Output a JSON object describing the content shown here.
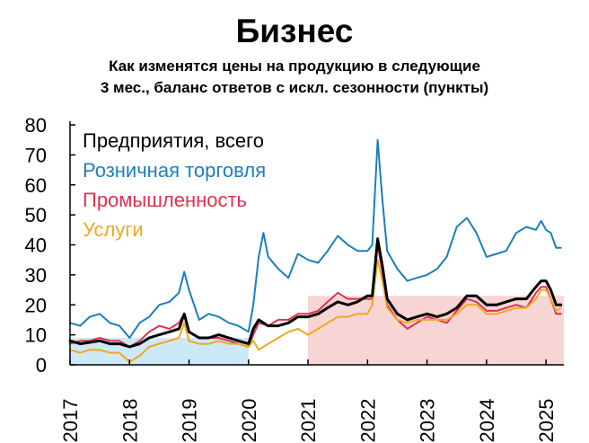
{
  "chart_data": {
    "type": "line",
    "title": "Бизнес",
    "subtitle_line1": "Как изменятся цены на продукцию в следующие",
    "subtitle_line2": "3 мес., баланс ответов с искл. сезонности (пункты)",
    "xlabel": "",
    "ylabel": "",
    "ylim": [
      0,
      80
    ],
    "xlim": [
      2017.0,
      2025.3
    ],
    "yticks": [
      "0",
      "10",
      "20",
      "30",
      "40",
      "50",
      "60",
      "70",
      "80"
    ],
    "xticks": [
      "2017",
      "2018",
      "2019",
      "2020",
      "2021",
      "2022",
      "2023",
      "2024",
      "2025"
    ],
    "legend": [
      "Предприятия, всего",
      "Розничная торговля",
      "Промышленность",
      "Услуги"
    ],
    "shaded_regions": [
      {
        "x_start": 2017.0,
        "x_end": 2020.0,
        "y_top": 9,
        "color": "#cde9f8"
      },
      {
        "x_start": 2021.0,
        "x_end": 2025.3,
        "y_top": 23,
        "color": "#f8d5d5"
      }
    ],
    "series": [
      {
        "name": "Предприятия, всего",
        "color": "#000000",
        "points": [
          [
            2017.0,
            8
          ],
          [
            2017.17,
            7
          ],
          [
            2017.33,
            7.5
          ],
          [
            2017.5,
            8
          ],
          [
            2017.67,
            7
          ],
          [
            2017.83,
            7
          ],
          [
            2018.0,
            6
          ],
          [
            2018.17,
            7
          ],
          [
            2018.33,
            9
          ],
          [
            2018.5,
            10
          ],
          [
            2018.67,
            11
          ],
          [
            2018.83,
            12
          ],
          [
            2018.92,
            17
          ],
          [
            2019.0,
            11
          ],
          [
            2019.17,
            9
          ],
          [
            2019.33,
            9
          ],
          [
            2019.5,
            10
          ],
          [
            2019.67,
            9
          ],
          [
            2019.83,
            8
          ],
          [
            2020.0,
            7
          ],
          [
            2020.08,
            12
          ],
          [
            2020.17,
            15
          ],
          [
            2020.33,
            13
          ],
          [
            2020.5,
            13
          ],
          [
            2020.67,
            14
          ],
          [
            2020.83,
            16
          ],
          [
            2021.0,
            16
          ],
          [
            2021.17,
            17
          ],
          [
            2021.33,
            19
          ],
          [
            2021.5,
            21
          ],
          [
            2021.67,
            20
          ],
          [
            2021.83,
            21
          ],
          [
            2022.0,
            23
          ],
          [
            2022.08,
            23
          ],
          [
            2022.17,
            42
          ],
          [
            2022.25,
            33
          ],
          [
            2022.33,
            22
          ],
          [
            2022.5,
            17
          ],
          [
            2022.67,
            15
          ],
          [
            2022.83,
            16
          ],
          [
            2023.0,
            17
          ],
          [
            2023.17,
            16
          ],
          [
            2023.33,
            17
          ],
          [
            2023.5,
            19
          ],
          [
            2023.67,
            23
          ],
          [
            2023.83,
            23
          ],
          [
            2024.0,
            20
          ],
          [
            2024.17,
            20
          ],
          [
            2024.33,
            21
          ],
          [
            2024.5,
            22
          ],
          [
            2024.67,
            22
          ],
          [
            2024.83,
            26
          ],
          [
            2024.92,
            28
          ],
          [
            2025.0,
            28
          ],
          [
            2025.08,
            25
          ],
          [
            2025.17,
            20
          ],
          [
            2025.25,
            20
          ]
        ]
      },
      {
        "name": "Розничная торговля",
        "color": "#1a7fbf",
        "points": [
          [
            2017.0,
            14
          ],
          [
            2017.17,
            13
          ],
          [
            2017.33,
            16
          ],
          [
            2017.5,
            17
          ],
          [
            2017.67,
            14
          ],
          [
            2017.83,
            13
          ],
          [
            2018.0,
            9
          ],
          [
            2018.17,
            14
          ],
          [
            2018.33,
            16
          ],
          [
            2018.5,
            20
          ],
          [
            2018.67,
            21
          ],
          [
            2018.83,
            24
          ],
          [
            2018.92,
            31
          ],
          [
            2019.0,
            25
          ],
          [
            2019.17,
            15
          ],
          [
            2019.33,
            17
          ],
          [
            2019.5,
            16
          ],
          [
            2019.67,
            14
          ],
          [
            2019.83,
            13
          ],
          [
            2020.0,
            11
          ],
          [
            2020.08,
            20
          ],
          [
            2020.17,
            36
          ],
          [
            2020.25,
            44
          ],
          [
            2020.33,
            36
          ],
          [
            2020.5,
            32
          ],
          [
            2020.67,
            29
          ],
          [
            2020.83,
            37
          ],
          [
            2021.0,
            35
          ],
          [
            2021.17,
            34
          ],
          [
            2021.33,
            38
          ],
          [
            2021.5,
            43
          ],
          [
            2021.67,
            40
          ],
          [
            2021.83,
            38
          ],
          [
            2022.0,
            38
          ],
          [
            2022.08,
            40
          ],
          [
            2022.17,
            75
          ],
          [
            2022.25,
            55
          ],
          [
            2022.33,
            38
          ],
          [
            2022.5,
            32
          ],
          [
            2022.67,
            28
          ],
          [
            2022.83,
            29
          ],
          [
            2023.0,
            30
          ],
          [
            2023.17,
            32
          ],
          [
            2023.33,
            36
          ],
          [
            2023.5,
            46
          ],
          [
            2023.67,
            49
          ],
          [
            2023.83,
            44
          ],
          [
            2024.0,
            36
          ],
          [
            2024.17,
            37
          ],
          [
            2024.33,
            38
          ],
          [
            2024.5,
            44
          ],
          [
            2024.67,
            46
          ],
          [
            2024.83,
            45
          ],
          [
            2024.92,
            48
          ],
          [
            2025.0,
            45
          ],
          [
            2025.08,
            44
          ],
          [
            2025.17,
            39
          ],
          [
            2025.25,
            39
          ]
        ]
      },
      {
        "name": "Промышленность",
        "color": "#e0304e",
        "points": [
          [
            2017.0,
            7
          ],
          [
            2017.17,
            8
          ],
          [
            2017.33,
            8
          ],
          [
            2017.5,
            9
          ],
          [
            2017.67,
            8
          ],
          [
            2017.83,
            8
          ],
          [
            2018.0,
            6
          ],
          [
            2018.17,
            8
          ],
          [
            2018.33,
            11
          ],
          [
            2018.5,
            13
          ],
          [
            2018.67,
            12
          ],
          [
            2018.83,
            14
          ],
          [
            2018.92,
            17
          ],
          [
            2019.0,
            11
          ],
          [
            2019.17,
            9
          ],
          [
            2019.33,
            9
          ],
          [
            2019.5,
            9
          ],
          [
            2019.67,
            8
          ],
          [
            2019.83,
            7
          ],
          [
            2020.0,
            6
          ],
          [
            2020.08,
            10
          ],
          [
            2020.17,
            14
          ],
          [
            2020.33,
            13
          ],
          [
            2020.5,
            15
          ],
          [
            2020.67,
            15
          ],
          [
            2020.83,
            17
          ],
          [
            2021.0,
            17
          ],
          [
            2021.17,
            18
          ],
          [
            2021.33,
            21
          ],
          [
            2021.5,
            24
          ],
          [
            2021.67,
            22
          ],
          [
            2021.83,
            22
          ],
          [
            2022.0,
            22
          ],
          [
            2022.08,
            22
          ],
          [
            2022.17,
            40
          ],
          [
            2022.25,
            31
          ],
          [
            2022.33,
            20
          ],
          [
            2022.5,
            15
          ],
          [
            2022.67,
            12
          ],
          [
            2022.83,
            14
          ],
          [
            2023.0,
            16
          ],
          [
            2023.17,
            15
          ],
          [
            2023.33,
            14
          ],
          [
            2023.5,
            18
          ],
          [
            2023.67,
            22
          ],
          [
            2023.83,
            21
          ],
          [
            2024.0,
            18
          ],
          [
            2024.17,
            18
          ],
          [
            2024.33,
            19
          ],
          [
            2024.5,
            20
          ],
          [
            2024.67,
            19
          ],
          [
            2024.83,
            24
          ],
          [
            2024.92,
            26
          ],
          [
            2025.0,
            26
          ],
          [
            2025.08,
            22
          ],
          [
            2025.17,
            17
          ],
          [
            2025.25,
            17
          ]
        ]
      },
      {
        "name": "Услуги",
        "color": "#f0a820",
        "points": [
          [
            2017.0,
            5
          ],
          [
            2017.17,
            4
          ],
          [
            2017.33,
            5
          ],
          [
            2017.5,
            5
          ],
          [
            2017.67,
            4
          ],
          [
            2017.83,
            4
          ],
          [
            2018.0,
            1
          ],
          [
            2018.17,
            3
          ],
          [
            2018.33,
            6
          ],
          [
            2018.5,
            7
          ],
          [
            2018.67,
            8
          ],
          [
            2018.83,
            9
          ],
          [
            2018.92,
            14
          ],
          [
            2019.0,
            8
          ],
          [
            2019.17,
            7
          ],
          [
            2019.33,
            7
          ],
          [
            2019.5,
            8
          ],
          [
            2019.67,
            7
          ],
          [
            2019.83,
            7
          ],
          [
            2020.0,
            6
          ],
          [
            2020.08,
            8
          ],
          [
            2020.17,
            5
          ],
          [
            2020.33,
            7
          ],
          [
            2020.5,
            9
          ],
          [
            2020.67,
            11
          ],
          [
            2020.83,
            12
          ],
          [
            2021.0,
            10
          ],
          [
            2021.17,
            12
          ],
          [
            2021.33,
            14
          ],
          [
            2021.5,
            16
          ],
          [
            2021.67,
            16
          ],
          [
            2021.83,
            17
          ],
          [
            2022.0,
            17
          ],
          [
            2022.08,
            20
          ],
          [
            2022.17,
            35
          ],
          [
            2022.25,
            28
          ],
          [
            2022.33,
            19
          ],
          [
            2022.5,
            15
          ],
          [
            2022.67,
            14
          ],
          [
            2022.83,
            15
          ],
          [
            2023.0,
            15
          ],
          [
            2023.17,
            15
          ],
          [
            2023.33,
            15
          ],
          [
            2023.5,
            17
          ],
          [
            2023.67,
            20
          ],
          [
            2023.83,
            20
          ],
          [
            2024.0,
            17
          ],
          [
            2024.17,
            17
          ],
          [
            2024.33,
            18
          ],
          [
            2024.5,
            19
          ],
          [
            2024.67,
            19
          ],
          [
            2024.83,
            22
          ],
          [
            2024.92,
            25
          ],
          [
            2025.0,
            25
          ],
          [
            2025.08,
            22
          ],
          [
            2025.17,
            18
          ],
          [
            2025.25,
            19
          ]
        ]
      }
    ]
  }
}
